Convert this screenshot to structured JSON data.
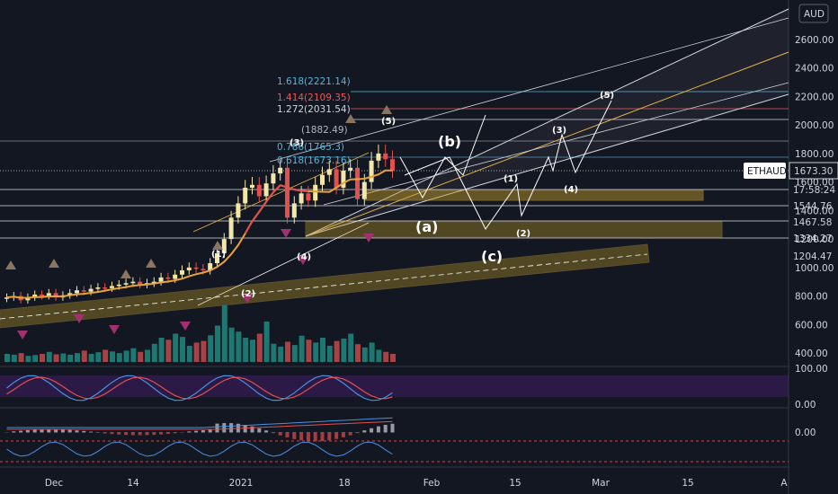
{
  "chart_data": {
    "type": "candlestick",
    "symbol": "ETHAUD",
    "currency": "AUD",
    "last_price": "1673.30",
    "countdown": "17:58:24",
    "price_scale": [
      2600,
      2400,
      2200,
      2000,
      1800,
      1600,
      1400,
      1200,
      1000,
      800,
      600,
      400
    ],
    "price_labels": [
      "2600.00",
      "2400.00",
      "2200.00",
      "2000.00",
      "1800.00",
      "1600.00",
      "1400.00",
      "1200.00",
      "1000.00",
      "800.00",
      "600.00",
      "400.00"
    ],
    "level_labels": [
      "1544.76",
      "1467.58",
      "1334.27",
      "1204.47"
    ],
    "x_labels": [
      "Dec",
      "14",
      "2021",
      "18",
      "Feb",
      "15",
      "Mar",
      "15",
      "A"
    ],
    "fib_labels": [
      "1.618(2221.14)",
      "1.414(2109.35)",
      "1.272(2031.54)",
      "(1882.49)",
      "0.786(1765.3)",
      "0.618(1673.16)"
    ],
    "wave_labels": [
      "(a)",
      "(b)",
      "(c)",
      "(1)",
      "(2)",
      "(3)",
      "(4)",
      "(5)"
    ],
    "osc1_labels": [
      "100.00",
      "0.00"
    ],
    "osc2_label": "0.00",
    "closes": [
      790,
      800,
      770,
      790,
      810,
      800,
      820,
      790,
      805,
      820,
      840,
      830,
      850,
      860,
      855,
      870,
      880,
      890,
      900,
      880,
      890,
      900,
      930,
      920,
      950,
      980,
      1000,
      990,
      980,
      1030,
      1100,
      1200,
      1350,
      1450,
      1560,
      1580,
      1500,
      1590,
      1660,
      1700,
      1350,
      1450,
      1520,
      1470,
      1580,
      1650,
      1690,
      1560,
      1680,
      1700,
      1480,
      1600,
      1750,
      1800,
      1760,
      1680
    ],
    "volumes": [
      20,
      18,
      22,
      15,
      17,
      20,
      25,
      19,
      21,
      18,
      22,
      28,
      20,
      24,
      30,
      26,
      22,
      28,
      34,
      25,
      30,
      45,
      60,
      55,
      70,
      62,
      40,
      48,
      52,
      66,
      90,
      140,
      85,
      75,
      60,
      55,
      70,
      100,
      45,
      38,
      50,
      42,
      65,
      55,
      48,
      60,
      40,
      52,
      58,
      70,
      44,
      36,
      48,
      30,
      25,
      20
    ]
  }
}
